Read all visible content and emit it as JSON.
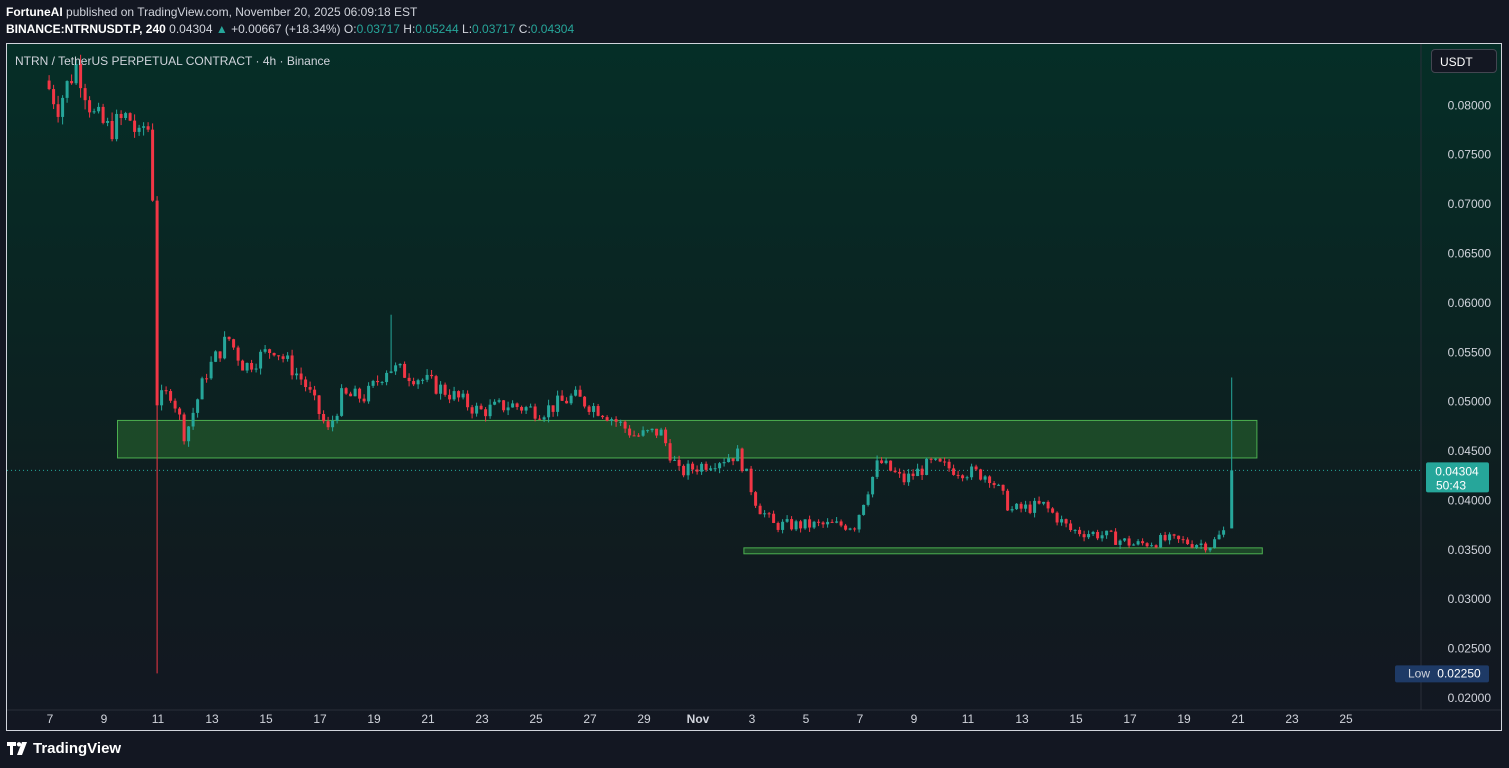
{
  "header": {
    "author": "FortuneAI",
    "published_text": "published on TradingView.com, November 20, 2025 06:09:18 EST",
    "symbol": "BINANCE:NTRNUSDT.P, 240",
    "last": "0.04304",
    "change": "+0.00667 (+18.34%)",
    "o_label": "O:",
    "o_value": "0.03717",
    "h_label": "H:",
    "h_value": "0.05244",
    "l_label": "L:",
    "l_value": "0.03717",
    "c_label": "C:",
    "c_value": "0.04304"
  },
  "chart": {
    "legend_title": "NTRN / TetherUS PERPETUAL CONTRACT · 4h · Binance",
    "unit_button": "USDT",
    "current_price_label": "0.04304",
    "countdown_label": "50:43",
    "low_label": "Low",
    "low_value": "0.02250",
    "colors": {
      "up": "#26a69a",
      "down": "#f23645",
      "zone_fill": "#2e7d32",
      "zone_border": "#4caf50",
      "background": "#131722"
    }
  },
  "footer": {
    "brand": "TradingView",
    "logo_icon": "tradingview-logo-icon"
  },
  "chart_data": {
    "type": "candlestick",
    "title": "NTRN / TetherUS PERPETUAL CONTRACT · 4h · Binance",
    "timeframe": "4h",
    "y_ticks": [
      "0.08000",
      "0.07500",
      "0.07000",
      "0.06500",
      "0.06000",
      "0.05500",
      "0.05000",
      "0.04500",
      "0.04000",
      "0.03500",
      "0.03000",
      "0.02500",
      "0.02000"
    ],
    "ylim": [
      0.0198,
      0.086
    ],
    "x_ticks": [
      {
        "label": "7",
        "day": 7
      },
      {
        "label": "9",
        "day": 9
      },
      {
        "label": "11",
        "day": 11
      },
      {
        "label": "13",
        "day": 13
      },
      {
        "label": "15",
        "day": 15
      },
      {
        "label": "17",
        "day": 17
      },
      {
        "label": "19",
        "day": 19
      },
      {
        "label": "21",
        "day": 21
      },
      {
        "label": "23",
        "day": 23
      },
      {
        "label": "25",
        "day": 25
      },
      {
        "label": "27",
        "day": 27
      },
      {
        "label": "29",
        "day": 29
      },
      {
        "label": "Nov",
        "day": 31
      },
      {
        "label": "3",
        "day": 33
      },
      {
        "label": "5",
        "day": 35
      },
      {
        "label": "7",
        "day": 37
      },
      {
        "label": "9",
        "day": 39
      },
      {
        "label": "11",
        "day": 41
      },
      {
        "label": "13",
        "day": 43
      },
      {
        "label": "15",
        "day": 45
      },
      {
        "label": "17",
        "day": 47
      },
      {
        "label": "19",
        "day": 49
      },
      {
        "label": "21",
        "day": 51
      },
      {
        "label": "23",
        "day": 53
      },
      {
        "label": "25",
        "day": 55
      }
    ],
    "zones": [
      {
        "name": "resistance-zone",
        "y_low": 0.0443,
        "y_high": 0.0481,
        "day_from": 9.5,
        "day_to": 51.7
      },
      {
        "name": "support-zone",
        "y_low": 0.0346,
        "y_high": 0.0352,
        "day_from": 32.7,
        "day_to": 51.9
      }
    ],
    "current_price": 0.04304,
    "anchors": [
      {
        "day": 6.8,
        "price": 0.0825
      },
      {
        "day": 7.3,
        "price": 0.08
      },
      {
        "day": 8.0,
        "price": 0.0842
      },
      {
        "day": 8.6,
        "price": 0.079
      },
      {
        "day": 9.2,
        "price": 0.0775
      },
      {
        "day": 9.9,
        "price": 0.079
      },
      {
        "day": 10.3,
        "price": 0.0765
      },
      {
        "day": 10.6,
        "price": 0.079
      },
      {
        "day": 10.8,
        "price": 0.071
      },
      {
        "day": 10.95,
        "price": 0.05
      },
      {
        "day": 11.5,
        "price": 0.051
      },
      {
        "day": 12.0,
        "price": 0.0465
      },
      {
        "day": 12.8,
        "price": 0.053
      },
      {
        "day": 13.6,
        "price": 0.0565
      },
      {
        "day": 14.2,
        "price": 0.0535
      },
      {
        "day": 15.3,
        "price": 0.0555
      },
      {
        "day": 16.4,
        "price": 0.052
      },
      {
        "day": 17.3,
        "price": 0.047
      },
      {
        "day": 17.8,
        "price": 0.0505
      },
      {
        "day": 18.7,
        "price": 0.0505
      },
      {
        "day": 19.5,
        "price": 0.0535
      },
      {
        "day": 20.6,
        "price": 0.0525
      },
      {
        "day": 21.7,
        "price": 0.051
      },
      {
        "day": 22.9,
        "price": 0.049
      },
      {
        "day": 24.0,
        "price": 0.0497
      },
      {
        "day": 25.2,
        "price": 0.049
      },
      {
        "day": 26.4,
        "price": 0.0505
      },
      {
        "day": 27.5,
        "price": 0.049
      },
      {
        "day": 28.7,
        "price": 0.0465
      },
      {
        "day": 29.6,
        "price": 0.047
      },
      {
        "day": 30.3,
        "price": 0.0428
      },
      {
        "day": 31.6,
        "price": 0.044
      },
      {
        "day": 32.5,
        "price": 0.0447
      },
      {
        "day": 33.2,
        "price": 0.0395
      },
      {
        "day": 33.8,
        "price": 0.0375
      },
      {
        "day": 35.4,
        "price": 0.0375
      },
      {
        "day": 36.8,
        "price": 0.0375
      },
      {
        "day": 37.2,
        "price": 0.0405
      },
      {
        "day": 37.7,
        "price": 0.044
      },
      {
        "day": 38.6,
        "price": 0.042
      },
      {
        "day": 39.6,
        "price": 0.0437
      },
      {
        "day": 40.8,
        "price": 0.043
      },
      {
        "day": 41.8,
        "price": 0.0425
      },
      {
        "day": 42.6,
        "price": 0.039
      },
      {
        "day": 43.8,
        "price": 0.0395
      },
      {
        "day": 44.8,
        "price": 0.037
      },
      {
        "day": 46.0,
        "price": 0.0365
      },
      {
        "day": 47.2,
        "price": 0.0355
      },
      {
        "day": 48.3,
        "price": 0.036
      },
      {
        "day": 49.4,
        "price": 0.0357
      },
      {
        "day": 50.0,
        "price": 0.0355
      },
      {
        "day": 50.6,
        "price": 0.0372
      }
    ],
    "last_candle": {
      "open": 0.03717,
      "high": 0.05244,
      "low": 0.03717,
      "close": 0.04304
    },
    "notable_wicks": [
      {
        "day": 10.95,
        "price": 0.0225
      },
      {
        "day": 19.7,
        "price": 0.0588
      }
    ]
  }
}
